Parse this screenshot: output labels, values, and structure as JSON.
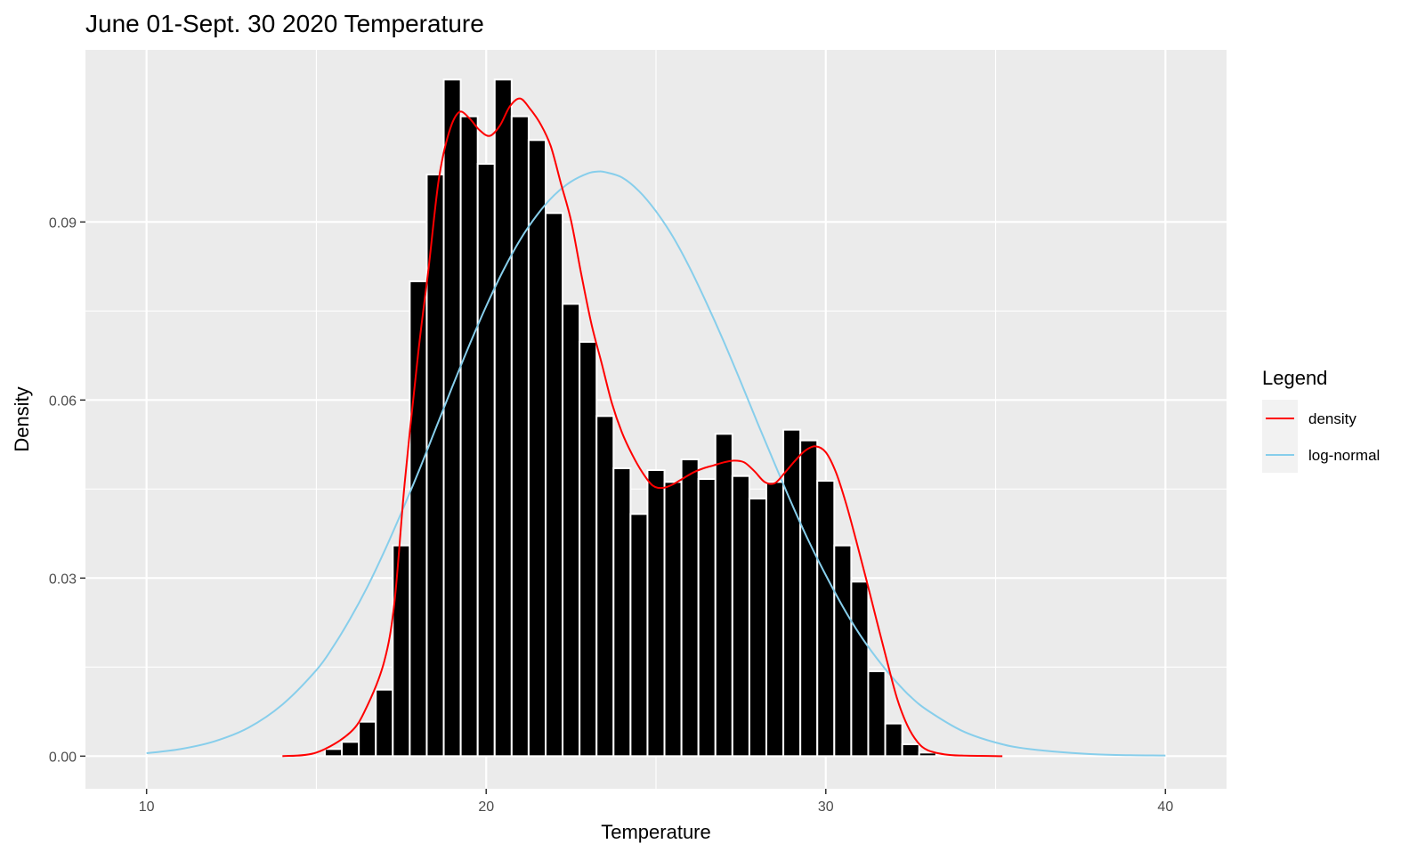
{
  "chart_data": {
    "type": "bar",
    "title": "June 01-Sept. 30 2020 Temperature",
    "xlabel": "Temperature",
    "ylabel": "Density",
    "xlim": [
      8.2,
      41.8
    ],
    "ylim": [
      -0.0055,
      0.119
    ],
    "x_ticks": [
      10,
      20,
      30,
      40
    ],
    "x_tick_labels": [
      "10",
      "20",
      "30",
      "40"
    ],
    "y_ticks": [
      0.0,
      0.03,
      0.06,
      0.09
    ],
    "y_tick_labels": [
      "0.00",
      "0.03",
      "0.06",
      "0.09"
    ],
    "grid": true,
    "legend": {
      "title": "Legend",
      "placement": "right",
      "entries": [
        {
          "label": "density",
          "color": "#ff0000"
        },
        {
          "label": "log-normal",
          "color": "#87ceeb"
        }
      ]
    },
    "histogram": {
      "bin_width": 0.5,
      "bin_start": 15.25,
      "fill": "#000000",
      "outline": "#ffffff",
      "densities": [
        0.0012,
        0.0024,
        0.0058,
        0.0112,
        0.0355,
        0.08,
        0.098,
        0.114,
        0.1078,
        0.0998,
        0.114,
        0.1078,
        0.1038,
        0.0915,
        0.0762,
        0.0698,
        0.0573,
        0.0485,
        0.0408,
        0.0482,
        0.0462,
        0.05,
        0.0467,
        0.0543,
        0.0472,
        0.0434,
        0.0462,
        0.055,
        0.0532,
        0.0464,
        0.0355,
        0.0294,
        0.0143,
        0.0055,
        0.002,
        0.0006
      ]
    },
    "series": [
      {
        "name": "density",
        "color": "#ff0000",
        "x": [
          14,
          15,
          16,
          16.5,
          17,
          17.3,
          17.6,
          18,
          18.3,
          18.6,
          18.9,
          19.2,
          19.5,
          19.8,
          20.1,
          20.4,
          20.7,
          21,
          21.3,
          21.6,
          21.9,
          22.2,
          22.5,
          22.8,
          23.1,
          23.4,
          23.7,
          24,
          24.3,
          24.6,
          24.9,
          25.2,
          25.5,
          25.8,
          26.1,
          26.4,
          26.7,
          27,
          27.3,
          27.6,
          27.9,
          28.2,
          28.5,
          28.8,
          29.1,
          29.4,
          29.7,
          30,
          30.3,
          30.6,
          30.9,
          31.2,
          31.5,
          31.8,
          32.1,
          32.4,
          32.7,
          33,
          33.5,
          34,
          35.2
        ],
        "y": [
          0.0,
          0.0006,
          0.004,
          0.0085,
          0.016,
          0.026,
          0.046,
          0.068,
          0.082,
          0.097,
          0.105,
          0.1085,
          0.1075,
          0.1055,
          0.1045,
          0.1062,
          0.1095,
          0.1108,
          0.109,
          0.1065,
          0.1028,
          0.0965,
          0.0902,
          0.0812,
          0.0728,
          0.0662,
          0.0595,
          0.0545,
          0.0508,
          0.0478,
          0.0456,
          0.0452,
          0.0458,
          0.0468,
          0.0478,
          0.0485,
          0.049,
          0.0495,
          0.0498,
          0.0495,
          0.048,
          0.0462,
          0.046,
          0.0478,
          0.0498,
          0.0515,
          0.0522,
          0.0512,
          0.0478,
          0.0425,
          0.0362,
          0.0296,
          0.0228,
          0.0161,
          0.0097,
          0.0052,
          0.0024,
          0.001,
          0.0003,
          0.0001,
          0.0
        ]
      },
      {
        "name": "log-normal",
        "color": "#87ceeb",
        "x": [
          10,
          11,
          12,
          13,
          14,
          15,
          15.5,
          16,
          16.5,
          17,
          17.5,
          18,
          18.5,
          19,
          19.5,
          20,
          20.5,
          21,
          21.5,
          22,
          22.5,
          23,
          23.3,
          23.5,
          24,
          24.5,
          25,
          25.5,
          26,
          26.5,
          27,
          27.5,
          28,
          28.5,
          29,
          29.5,
          30,
          30.5,
          31,
          31.5,
          32,
          32.5,
          33,
          34,
          35,
          36,
          38,
          40
        ],
        "y": [
          0.0005,
          0.0012,
          0.0025,
          0.0048,
          0.0087,
          0.0145,
          0.0185,
          0.0232,
          0.0285,
          0.0345,
          0.041,
          0.0478,
          0.055,
          0.0622,
          0.0692,
          0.0758,
          0.0818,
          0.087,
          0.0912,
          0.0945,
          0.0968,
          0.0982,
          0.0985,
          0.0984,
          0.0975,
          0.0952,
          0.0918,
          0.0875,
          0.0822,
          0.0762,
          0.0698,
          0.063,
          0.056,
          0.0492,
          0.0425,
          0.0362,
          0.0305,
          0.0252,
          0.0205,
          0.0165,
          0.013,
          0.01,
          0.0077,
          0.0043,
          0.0023,
          0.0012,
          0.0003,
          0.0001
        ]
      }
    ]
  }
}
